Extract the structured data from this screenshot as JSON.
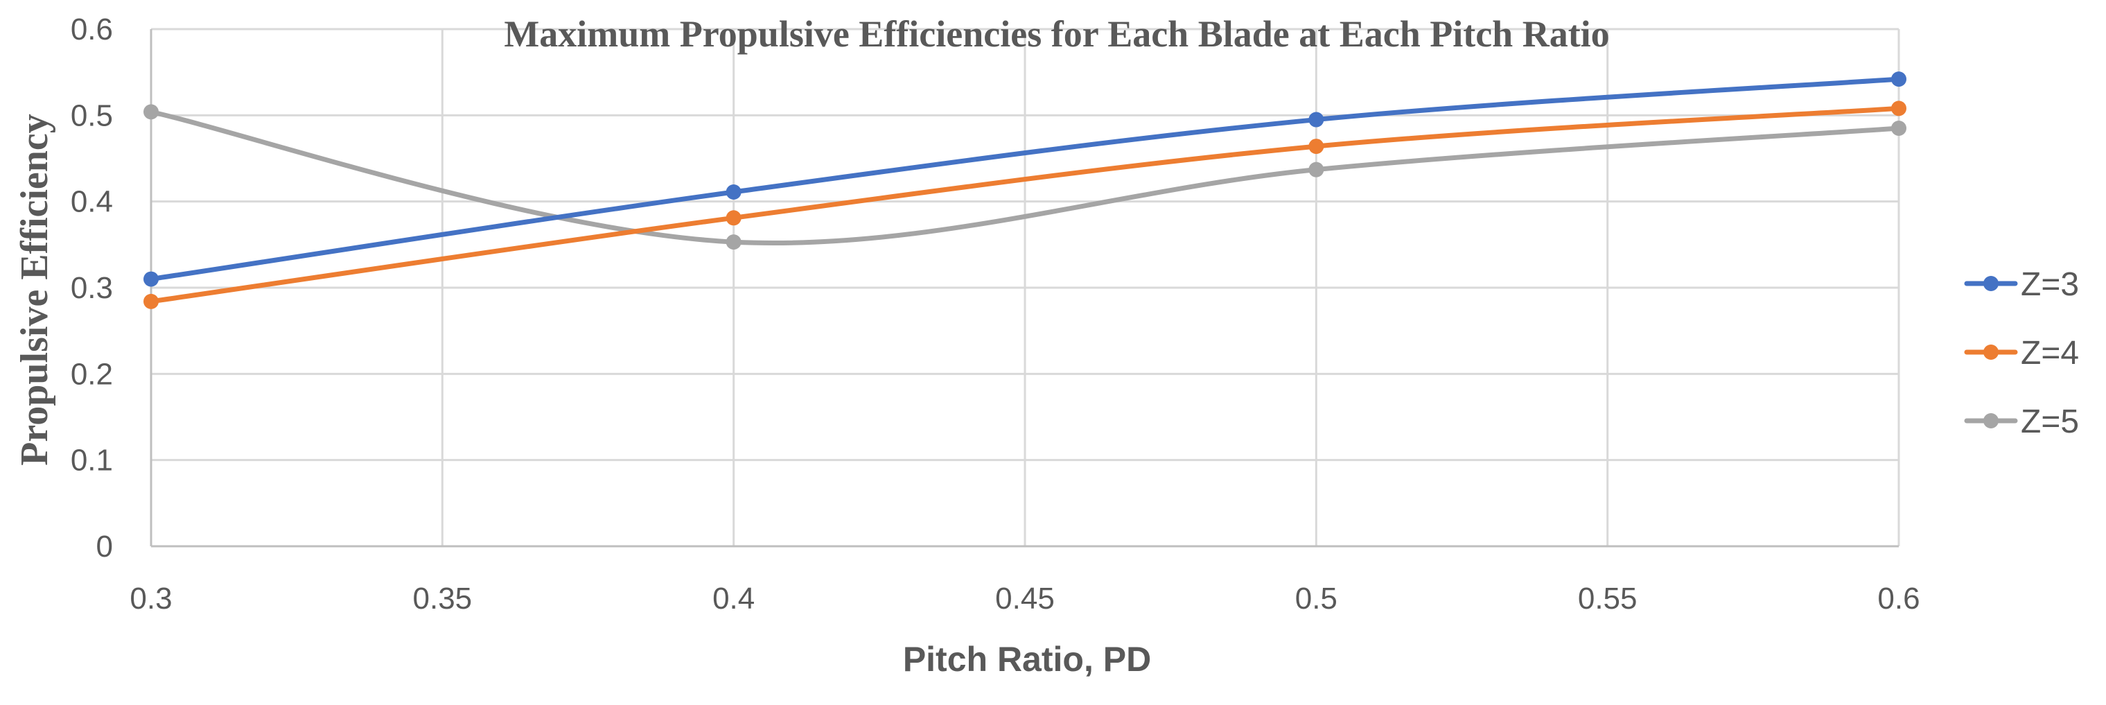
{
  "chart_data": {
    "type": "line",
    "title": "Maximum Propulsive Efficiencies for Each Blade at Each Pitch Ratio",
    "xlabel": "Pitch Ratio, PD",
    "ylabel": "Propulsive Efficiency",
    "xlim": [
      0.3,
      0.6
    ],
    "ylim": [
      0,
      0.6
    ],
    "x_ticks": [
      "0.3",
      "0.35",
      "0.4",
      "0.45",
      "0.5",
      "0.55",
      "0.6"
    ],
    "y_ticks": [
      "0",
      "0.1",
      "0.2",
      "0.3",
      "0.4",
      "0.5",
      "0.6"
    ],
    "grid": true,
    "smooth": true,
    "legend_position": "right",
    "x": [
      0.3,
      0.4,
      0.5,
      0.6
    ],
    "series": [
      {
        "name": "Z=3",
        "values": [
          0.31,
          0.411,
          0.495,
          0.542
        ],
        "color": "#4472C4"
      },
      {
        "name": "Z=4",
        "values": [
          0.284,
          0.381,
          0.464,
          0.508
        ],
        "color": "#ED7D31"
      },
      {
        "name": "Z=5",
        "values": [
          0.504,
          0.353,
          0.437,
          0.485
        ],
        "color": "#A5A5A5"
      }
    ]
  }
}
